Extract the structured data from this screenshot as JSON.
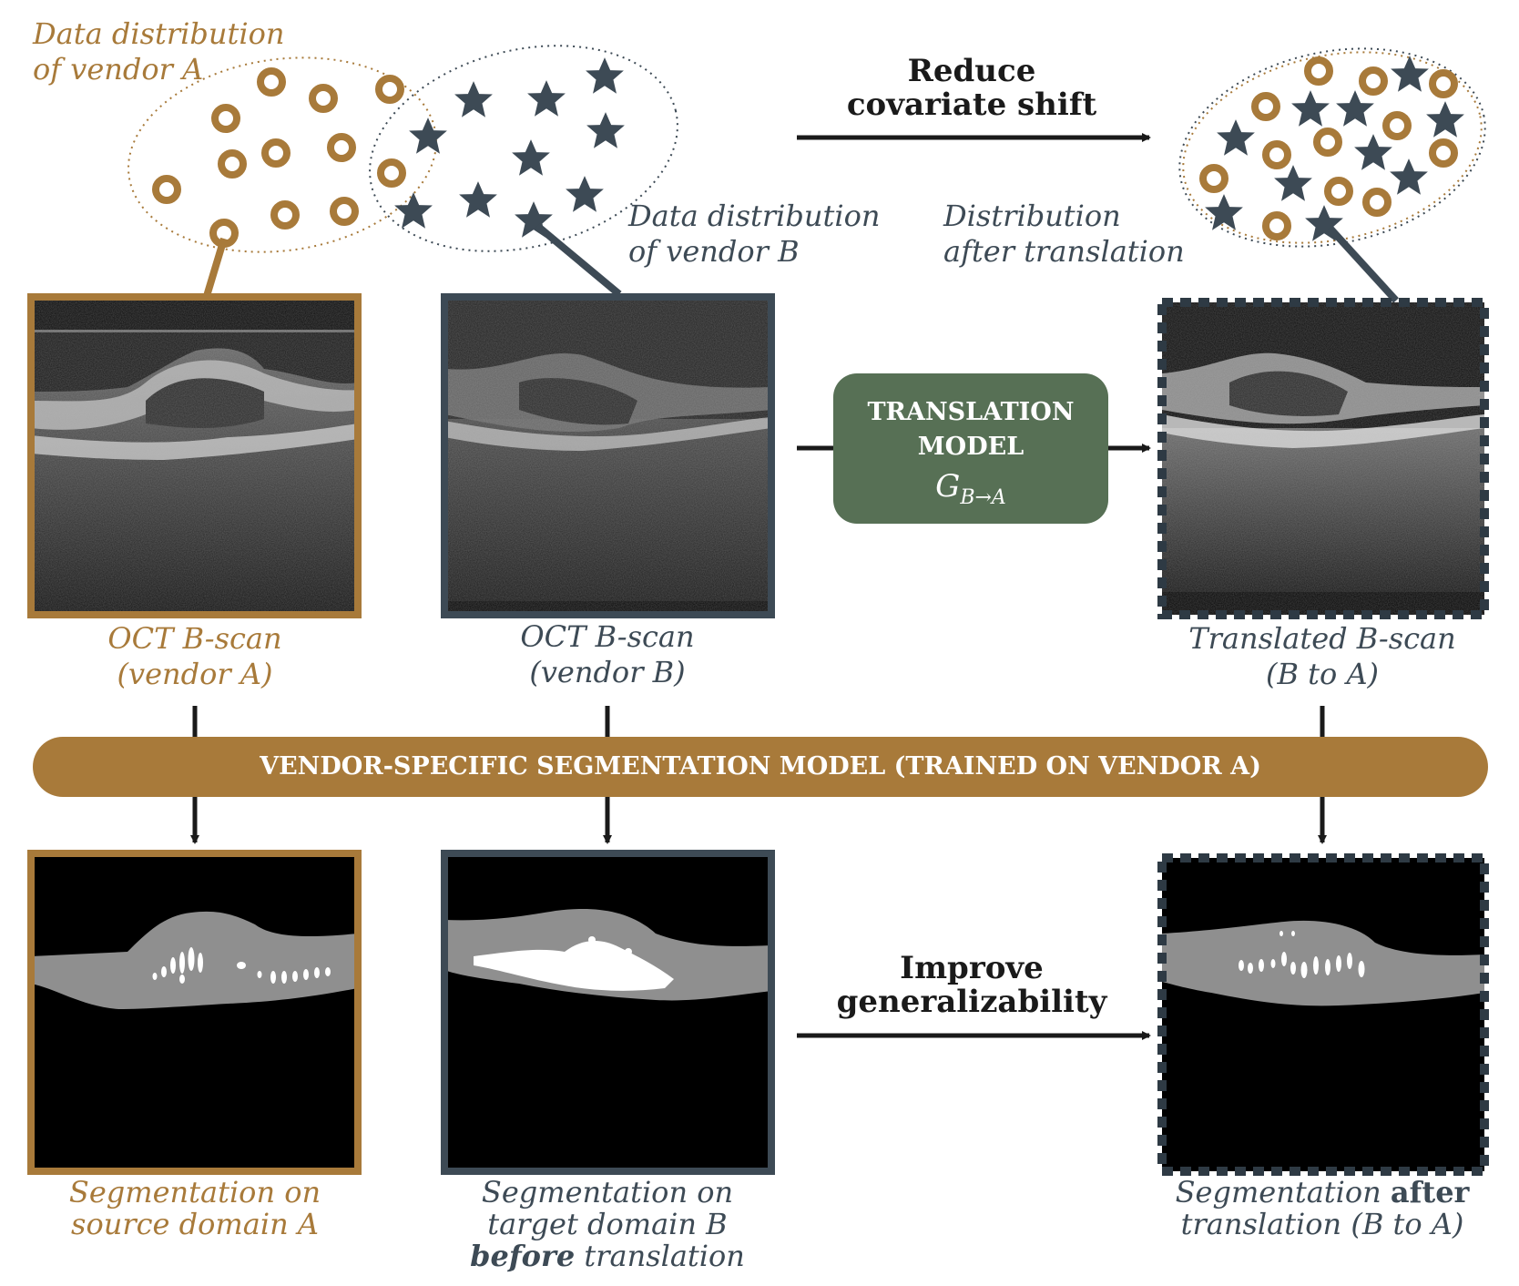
{
  "colors": {
    "vendor_a": "#a87a3a",
    "vendor_b": "#3d4a55",
    "model_box": "#577055",
    "arrow": "#1a1a1a"
  },
  "distributions": {
    "vendor_a_label_line1": "Data distribution",
    "vendor_a_label_line2": "of vendor A",
    "vendor_b_label_line1": "Data distribution",
    "vendor_b_label_line2": "of vendor B",
    "translated_label_line1": "Distribution",
    "translated_label_line2": "after translation",
    "vendor_a_marker": "ring-icon",
    "vendor_b_marker": "star-icon"
  },
  "top_arrow": {
    "line1": "Reduce",
    "line2": "covariate shift"
  },
  "translation_model": {
    "line1": "TRANSLATION",
    "line2": "MODEL",
    "symbol": "G",
    "subscript": "B→A"
  },
  "scans": {
    "vendor_a_line1": "OCT B-scan",
    "vendor_a_line2": "(vendor A)",
    "vendor_b_line1": "OCT B-scan",
    "vendor_b_line2": "(vendor B)",
    "translated_line1": "Translated B-scan",
    "translated_line2": "(B to A)"
  },
  "segmentation_model": {
    "label": "VENDOR-SPECIFIC SEGMENTATION MODEL (TRAINED ON VENDOR A)"
  },
  "bottom_arrow": {
    "line1": "Improve",
    "line2": "generalizability"
  },
  "segmentations": {
    "source_line1": "Segmentation on",
    "source_line2": "source domain A",
    "target_line1": "Segmentation on",
    "target_line2": "target domain B",
    "target_line3_bold": "before",
    "target_line3_rest": " translation",
    "after_line1_pre": "Segmentation ",
    "after_line1_bold": "after",
    "after_line2": "translation (B to A)"
  }
}
